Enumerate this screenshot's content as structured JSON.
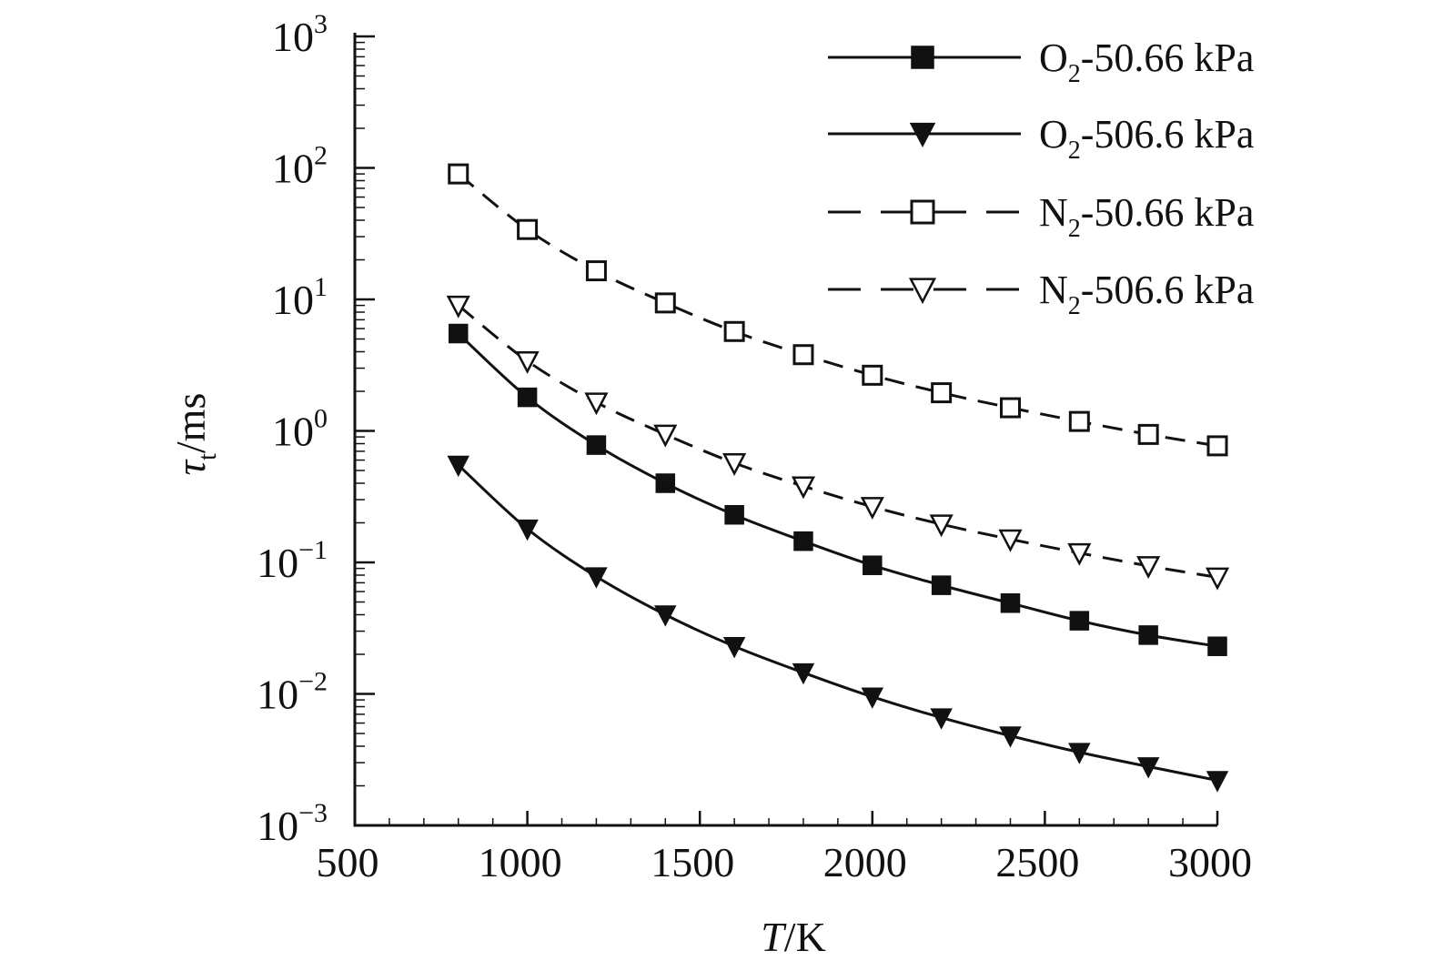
{
  "chart_data": {
    "type": "line",
    "xlabel": {
      "italic": "T",
      "rest": "/K"
    },
    "ylabel": {
      "main": "τ",
      "sub": "t",
      "rest": "/ms"
    },
    "xlim": [
      500,
      3000
    ],
    "ylim": [
      0.001,
      1000
    ],
    "yscale": "log",
    "x_ticks": [
      500,
      1000,
      1500,
      2000,
      2500,
      3000
    ],
    "x_tick_labels": [
      "500",
      "1000",
      "1500",
      "2000",
      "2500",
      "3000"
    ],
    "y_ticks": [
      {
        "value": 1000,
        "base": "10",
        "exp": "3"
      },
      {
        "value": 100,
        "base": "10",
        "exp": "2"
      },
      {
        "value": 10,
        "base": "10",
        "exp": "1"
      },
      {
        "value": 1,
        "base": "10",
        "exp": "0"
      },
      {
        "value": 0.1,
        "base": "10",
        "exp": "−1"
      },
      {
        "value": 0.01,
        "base": "10",
        "exp": "−2"
      },
      {
        "value": 0.001,
        "base": "10",
        "exp": "−3"
      }
    ],
    "grid": false,
    "legend_position": "top-right",
    "x": [
      800,
      1000,
      1200,
      1400,
      1600,
      1800,
      2000,
      2200,
      2400,
      2600,
      2800,
      3000
    ],
    "series": [
      {
        "name": "O2-50.66 kPa",
        "label_main": "O",
        "label_sub": "2",
        "label_rest": "-50.66 kPa",
        "marker": "square-filled",
        "dash": "solid",
        "values": [
          5.5,
          1.8,
          0.78,
          0.4,
          0.23,
          0.145,
          0.095,
          0.067,
          0.049,
          0.036,
          0.028,
          0.023
        ]
      },
      {
        "name": "O2-506.6 kPa",
        "label_main": "O",
        "label_sub": "2",
        "label_rest": "-506.6 kPa",
        "marker": "triangle-down-filled",
        "dash": "solid",
        "values": [
          0.55,
          0.18,
          0.078,
          0.04,
          0.023,
          0.0145,
          0.0095,
          0.0066,
          0.0048,
          0.0036,
          0.0028,
          0.0022
        ]
      },
      {
        "name": "N2-50.66 kPa",
        "label_main": "N",
        "label_sub": "2",
        "label_rest": "-50.66 kPa",
        "marker": "square-open",
        "dash": "dashed",
        "values": [
          90,
          34,
          16.5,
          9.4,
          5.7,
          3.8,
          2.65,
          1.95,
          1.5,
          1.18,
          0.94,
          0.77
        ]
      },
      {
        "name": "N2-506.6 kPa",
        "label_main": "N",
        "label_sub": "2",
        "label_rest": "-506.6 kPa",
        "marker": "triangle-down-open",
        "dash": "dashed",
        "values": [
          9.0,
          3.4,
          1.65,
          0.94,
          0.57,
          0.38,
          0.265,
          0.195,
          0.15,
          0.118,
          0.094,
          0.077
        ]
      }
    ]
  }
}
